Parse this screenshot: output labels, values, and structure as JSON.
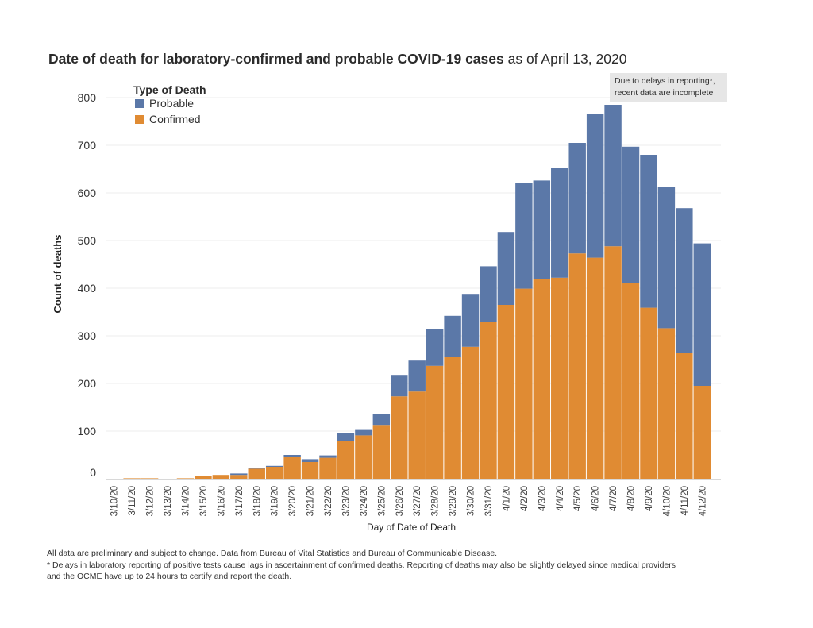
{
  "title": {
    "bold": "Date of death for laboratory-confirmed and probable COVID-19 cases",
    "light": " as of April 13, 2020"
  },
  "note_box": {
    "line1": "Due to delays in reporting*,",
    "line2": "recent data are incomplete"
  },
  "footer": {
    "line1": "All data are preliminary and subject to change. Data from Bureau of Vital Statistics and Bureau of Communicable Disease.",
    "line2": "* Delays in laboratory reporting of positive tests cause lags in ascertainment of confirmed deaths. Reporting of deaths may also be slightly delayed since medical providers",
    "line3": "and the OCME have up to 24 hours to certify and report the death."
  },
  "colors": {
    "probable": "#5b78a8",
    "confirmed": "#e08b33",
    "grid": "#ececec",
    "axis_text": "#555555"
  },
  "chart_data": {
    "type": "bar",
    "stacked": true,
    "xlabel": "Day of Date of Death",
    "ylabel": "Count of deaths",
    "ylim": [
      0,
      800
    ],
    "yticks": [
      0,
      100,
      200,
      300,
      400,
      500,
      600,
      700,
      800
    ],
    "legend": {
      "title": "Type of Death",
      "placement": "top-left",
      "entries": [
        "Probable",
        "Confirmed"
      ]
    },
    "categories": [
      "3/10/20",
      "3/11/20",
      "3/12/20",
      "3/13/20",
      "3/14/20",
      "3/15/20",
      "3/16/20",
      "3/17/20",
      "3/18/20",
      "3/19/20",
      "3/20/20",
      "3/21/20",
      "3/22/20",
      "3/23/20",
      "3/24/20",
      "3/25/20",
      "3/26/20",
      "3/27/20",
      "3/28/20",
      "3/29/20",
      "3/30/20",
      "3/31/20",
      "4/1/20",
      "4/2/20",
      "4/3/20",
      "4/4/20",
      "4/5/20",
      "4/6/20",
      "4/7/20",
      "4/8/20",
      "4/9/20",
      "4/10/20",
      "4/11/20",
      "4/12/20"
    ],
    "series": [
      {
        "name": "Confirmed",
        "values": [
          0,
          1,
          1,
          0,
          1,
          5,
          8,
          8,
          21,
          25,
          45,
          35,
          44,
          79,
          91,
          113,
          173,
          183,
          237,
          255,
          277,
          329,
          365,
          399,
          420,
          422,
          473,
          464,
          488,
          411,
          359,
          316,
          264,
          195
        ]
      },
      {
        "name": "Probable",
        "values": [
          0,
          0,
          0,
          0,
          0,
          0,
          0,
          3,
          2,
          2,
          5,
          6,
          5,
          16,
          13,
          23,
          45,
          65,
          78,
          87,
          111,
          117,
          153,
          222,
          206,
          230,
          232,
          302,
          297,
          286,
          321,
          297,
          304,
          299
        ]
      }
    ]
  }
}
